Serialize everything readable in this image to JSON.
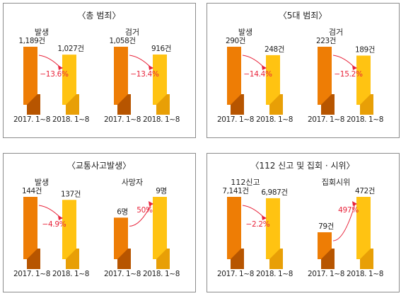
{
  "colors": {
    "bar_2017": "#ee7d05",
    "bar_2017_shadow": "#b75500",
    "bar_2018": "#ffc312",
    "bar_2018_shadow": "#e89f06",
    "arrow": "#e8233a"
  },
  "chart_data": [
    {
      "type": "bar",
      "title": "〈총 범죄〉",
      "categories": [
        "2017. 1~8",
        "2018. 1~8"
      ],
      "groups": [
        {
          "name": "발생",
          "values": [
            1189,
            1027
          ],
          "labels": [
            "1,189건",
            "1,027건"
          ],
          "change": "−13.6%"
        },
        {
          "name": "검거",
          "values": [
            1058,
            916
          ],
          "labels": [
            "1,058건",
            "916건"
          ],
          "change": "−13.4%"
        }
      ]
    },
    {
      "type": "bar",
      "title": "〈5대 범죄〉",
      "categories": [
        "2017. 1~8",
        "2018. 1~8"
      ],
      "groups": [
        {
          "name": "발생",
          "values": [
            290,
            248
          ],
          "labels": [
            "290건",
            "248건"
          ],
          "change": "−14.4%"
        },
        {
          "name": "검거",
          "values": [
            223,
            189
          ],
          "labels": [
            "223건",
            "189건"
          ],
          "change": "−15.2%"
        }
      ]
    },
    {
      "type": "bar",
      "title": "〈교통사고발생〉",
      "categories": [
        "2017. 1~8",
        "2018. 1~8"
      ],
      "groups": [
        {
          "name": "발생",
          "values": [
            144,
            137
          ],
          "labels": [
            "144건",
            "137건"
          ],
          "change": "−4.9%"
        },
        {
          "name": "사망자",
          "values": [
            6,
            9
          ],
          "labels": [
            "6명",
            "9명"
          ],
          "change": "50%"
        }
      ]
    },
    {
      "type": "bar",
      "title": "〈112 신고 및 집회 · 시위〉",
      "categories": [
        "2017. 1~8",
        "2018. 1~8"
      ],
      "groups": [
        {
          "name": "112신고",
          "values": [
            7141,
            6987
          ],
          "labels": [
            "7,141건",
            "6,987건"
          ],
          "change": "−2.2%"
        },
        {
          "name": "집회시위",
          "values": [
            79,
            472
          ],
          "labels": [
            "79건",
            "472건"
          ],
          "change": "497%"
        }
      ]
    }
  ]
}
